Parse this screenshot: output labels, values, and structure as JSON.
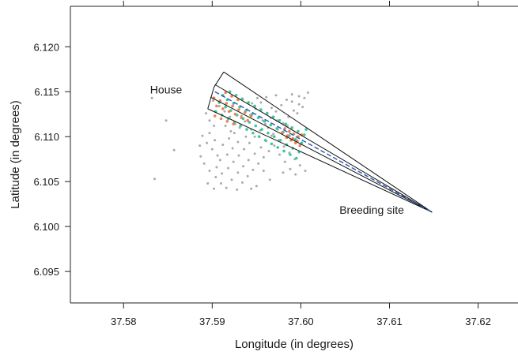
{
  "chart_data": {
    "type": "scatter",
    "xlabel": "Longitude (in degrees)",
    "ylabel": "Latitude (in degrees)",
    "xlim": [
      37.574,
      37.6245
    ],
    "ylim": [
      6.0915,
      6.1245
    ],
    "xticks": [
      "37.58",
      "37.59",
      "37.60",
      "37.61",
      "37.62"
    ],
    "xtick_values": [
      37.58,
      37.59,
      37.6,
      37.61,
      37.62
    ],
    "yticks": [
      "6.095",
      "6.100",
      "6.105",
      "6.110",
      "6.115",
      "6.120"
    ],
    "ytick_values": [
      6.095,
      6.1,
      6.105,
      6.11,
      6.115,
      6.12
    ],
    "grid": false,
    "annotations": [
      {
        "text": "House",
        "x": 37.5848,
        "y": 6.1148
      },
      {
        "text": "Breeding site",
        "x": 37.608,
        "y": 6.1014
      }
    ],
    "breeding_site": {
      "x": 37.6148,
      "y": 6.1016
    },
    "corridor_rays_end": [
      {
        "x": 37.5913,
        "y": 6.1172
      },
      {
        "x": 37.5903,
        "y": 6.1158
      },
      {
        "x": 37.5898,
        "y": 6.1144
      },
      {
        "x": 37.5895,
        "y": 6.1131
      }
    ],
    "sector_arc": [
      {
        "x": 37.5913,
        "y": 6.1172
      },
      {
        "x": 37.5902,
        "y": 6.1155
      },
      {
        "x": 37.5895,
        "y": 6.1131
      }
    ],
    "center_line": {
      "x1": 37.5903,
      "y1": 6.115,
      "x2": 37.6148,
      "y2": 6.1016
    },
    "houses_grey_region": {
      "x_range": [
        37.5885,
        37.601
      ],
      "y_range": [
        6.104,
        6.115
      ],
      "outliers": [
        {
          "x": 37.5832,
          "y": 6.1143
        },
        {
          "x": 37.5848,
          "y": 6.1118
        },
        {
          "x": 37.5835,
          "y": 6.1053
        },
        {
          "x": 37.5857,
          "y": 6.1085
        }
      ]
    },
    "series": [
      {
        "color": "#aaaaaa",
        "points": [
          [
            37.5893,
            6.1126
          ],
          [
            37.5897,
            6.1118
          ],
          [
            37.5902,
            6.1112
          ],
          [
            37.5889,
            6.1101
          ],
          [
            37.5894,
            6.1093
          ],
          [
            37.59,
            6.1086
          ],
          [
            37.5906,
            6.1079
          ],
          [
            37.5891,
            6.107
          ],
          [
            37.5897,
            6.1062
          ],
          [
            37.5904,
            6.1055
          ],
          [
            37.591,
            6.1048
          ],
          [
            37.5916,
            6.1043
          ],
          [
            37.5922,
            6.1052
          ],
          [
            37.5929,
            6.106
          ],
          [
            37.5935,
            6.1067
          ],
          [
            37.5941,
            6.1074
          ],
          [
            37.5948,
            6.1081
          ],
          [
            37.5955,
            6.1088
          ],
          [
            37.5961,
            6.1095
          ],
          [
            37.5967,
            6.1101
          ],
          [
            37.5974,
            6.1108
          ],
          [
            37.598,
            6.1115
          ],
          [
            37.5986,
            6.1122
          ],
          [
            37.5992,
            6.1129
          ],
          [
            37.5998,
            6.1136
          ],
          [
            37.6004,
            6.1143
          ],
          [
            37.6008,
            6.1149
          ],
          [
            37.5918,
            6.1065
          ],
          [
            37.5924,
            6.1072
          ],
          [
            37.593,
            6.1079
          ],
          [
            37.5936,
            6.1086
          ],
          [
            37.5942,
            6.1093
          ],
          [
            37.5948,
            6.11
          ],
          [
            37.5954,
            6.1107
          ],
          [
            37.596,
            6.1114
          ],
          [
            37.5966,
            6.1121
          ],
          [
            37.5972,
            6.1128
          ],
          [
            37.5978,
            6.1135
          ],
          [
            37.5984,
            6.1141
          ],
          [
            37.599,
            6.1147
          ],
          [
            37.5912,
            6.1091
          ],
          [
            37.5919,
            6.1098
          ],
          [
            37.5925,
            6.1104
          ],
          [
            37.5931,
            6.111
          ],
          [
            37.5937,
            6.1117
          ],
          [
            37.5943,
            6.1124
          ],
          [
            37.5949,
            6.1131
          ],
          [
            37.5955,
            6.1138
          ],
          [
            37.5961,
            6.1144
          ],
          [
            37.5934,
            6.1049
          ],
          [
            37.594,
            6.1056
          ],
          [
            37.5946,
            6.1063
          ],
          [
            37.5952,
            6.107
          ],
          [
            37.5958,
            6.1077
          ],
          [
            37.5964,
            6.1084
          ],
          [
            37.597,
            6.109
          ],
          [
            37.5976,
            6.108
          ],
          [
            37.5982,
            6.1072
          ],
          [
            37.5988,
            6.1064
          ],
          [
            37.5994,
            6.1058
          ],
          [
            37.5901,
            6.114
          ],
          [
            37.5908,
            6.1134
          ],
          [
            37.5914,
            6.1128
          ],
          [
            37.5887,
            6.1078
          ],
          [
            37.5886,
            6.109
          ],
          [
            37.5895,
            6.1048
          ],
          [
            37.5902,
            6.1042
          ],
          [
            37.5928,
            6.1041
          ],
          [
            37.595,
            6.1045
          ],
          [
            37.5965,
            6.1052
          ],
          [
            37.598,
            6.106
          ],
          [
            37.5998,
            6.1145
          ],
          [
            37.599,
            6.1139
          ],
          [
            37.5972,
            6.1146
          ],
          [
            37.5958,
            6.1062
          ],
          [
            37.5944,
            6.1042
          ],
          [
            37.592,
            6.1122
          ],
          [
            37.5926,
            6.1114
          ],
          [
            37.5938,
            6.11
          ],
          [
            37.5944,
            6.1108
          ],
          [
            37.5905,
            6.1066
          ],
          [
            37.5911,
            6.1059
          ],
          [
            37.5917,
            6.108
          ],
          [
            37.5923,
            6.1087
          ],
          [
            37.5929,
            6.1094
          ],
          [
            37.5897,
            6.1104
          ],
          [
            37.5903,
            6.1096
          ],
          [
            37.5909,
            6.1074
          ],
          [
            37.5915,
            6.1112
          ],
          [
            37.5921,
            6.1106
          ],
          [
            37.5933,
            6.1123
          ],
          [
            37.5939,
            6.113
          ],
          [
            37.5945,
            6.1137
          ],
          [
            37.5951,
            6.1143
          ],
          [
            37.5957,
            6.1118
          ],
          [
            37.5963,
            6.111
          ],
          [
            37.5969,
            6.1103
          ],
          [
            37.5975,
            6.1096
          ],
          [
            37.5981,
            6.1089
          ],
          [
            37.5987,
            6.1082
          ],
          [
            37.5993,
            6.1075
          ],
          [
            37.5999,
            6.1068
          ],
          [
            37.6005,
            6.1062
          ],
          [
            37.6002,
            6.1133
          ],
          [
            37.5996,
            6.1126
          ],
          [
            37.5985,
            6.1112
          ],
          [
            37.5979,
            6.1105
          ],
          [
            37.5973,
            6.1118
          ],
          [
            37.5967,
            6.1132
          ],
          [
            37.5832,
            6.1143
          ],
          [
            37.5848,
            6.1118
          ],
          [
            37.5835,
            6.1053
          ],
          [
            37.5857,
            6.1085
          ]
        ]
      },
      {
        "color": "#3cc9a0",
        "points": [
          [
            37.5908,
            6.1138
          ],
          [
            37.5915,
            6.1133
          ],
          [
            37.5921,
            6.1129
          ],
          [
            37.5928,
            6.1124
          ],
          [
            37.5935,
            6.112
          ],
          [
            37.5942,
            6.1116
          ],
          [
            37.5949,
            6.1112
          ],
          [
            37.5956,
            6.1108
          ],
          [
            37.5963,
            6.1104
          ],
          [
            37.597,
            6.11
          ],
          [
            37.5977,
            6.1096
          ],
          [
            37.5984,
            6.1091
          ],
          [
            37.5991,
            6.1087
          ],
          [
            37.5998,
            6.1083
          ],
          [
            37.592,
            6.115
          ],
          [
            37.5927,
            6.1146
          ],
          [
            37.5934,
            6.1142
          ],
          [
            37.5941,
            6.1138
          ],
          [
            37.5948,
            6.1134
          ],
          [
            37.5955,
            6.113
          ],
          [
            37.5962,
            6.1126
          ],
          [
            37.5969,
            6.1122
          ],
          [
            37.5976,
            6.1118
          ],
          [
            37.5983,
            6.1114
          ],
          [
            37.599,
            6.111
          ],
          [
            37.5997,
            6.1106
          ],
          [
            37.6004,
            6.1102
          ],
          [
            37.5904,
            6.1128
          ],
          [
            37.5911,
            6.1124
          ],
          [
            37.5918,
            6.112
          ],
          [
            37.5925,
            6.1116
          ],
          [
            37.5932,
            6.1112
          ],
          [
            37.5939,
            6.1108
          ],
          [
            37.5946,
            6.1104
          ],
          [
            37.5953,
            6.11
          ],
          [
            37.596,
            6.1096
          ],
          [
            37.5967,
            6.1092
          ],
          [
            37.5974,
            6.1088
          ],
          [
            37.5981,
            6.1084
          ],
          [
            37.5988,
            6.108
          ],
          [
            37.5995,
            6.1076
          ],
          [
            37.5912,
            6.1146
          ],
          [
            37.5917,
            6.1141
          ],
          [
            37.5924,
            6.1137
          ],
          [
            37.5931,
            6.1133
          ],
          [
            37.5938,
            6.1129
          ],
          [
            37.5945,
            6.1125
          ],
          [
            37.5952,
            6.1121
          ],
          [
            37.5959,
            6.1117
          ],
          [
            37.5966,
            6.1113
          ],
          [
            37.5973,
            6.1109
          ],
          [
            37.598,
            6.1105
          ],
          [
            37.5987,
            6.1101
          ],
          [
            37.5994,
            6.1097
          ],
          [
            37.6001,
            6.1093
          ],
          [
            37.6006,
            6.1108
          ]
        ]
      },
      {
        "color": "#f08050",
        "points": [
          [
            37.5902,
            6.1143
          ],
          [
            37.5909,
            6.114
          ],
          [
            37.5916,
            6.1137
          ],
          [
            37.5923,
            6.1134
          ],
          [
            37.593,
            6.113
          ],
          [
            37.5937,
            6.1127
          ],
          [
            37.5944,
            6.1123
          ],
          [
            37.5905,
            6.1134
          ],
          [
            37.5912,
            6.1131
          ],
          [
            37.5919,
            6.1128
          ],
          [
            37.5926,
            6.1125
          ],
          [
            37.5933,
            6.1121
          ],
          [
            37.594,
            6.1118
          ],
          [
            37.5915,
            6.1149
          ],
          [
            37.5922,
            6.1145
          ],
          [
            37.5929,
            6.1141
          ],
          [
            37.5903,
            6.1123
          ],
          [
            37.591,
            6.112
          ],
          [
            37.5917,
            6.1117
          ],
          [
            37.5924,
            6.1114
          ],
          [
            37.5982,
            6.1109
          ],
          [
            37.5987,
            6.1106
          ],
          [
            37.5992,
            6.1103
          ],
          [
            37.5997,
            6.11
          ],
          [
            37.5984,
            6.1099
          ],
          [
            37.5989,
            6.1096
          ],
          [
            37.5994,
            6.1093
          ],
          [
            37.5999,
            6.109
          ],
          [
            37.5979,
            6.1104
          ],
          [
            37.5985,
            6.1101
          ],
          [
            37.5991,
            6.1098
          ],
          [
            37.5996,
            6.1095
          ],
          [
            37.6001,
            6.1102
          ]
        ]
      }
    ]
  }
}
